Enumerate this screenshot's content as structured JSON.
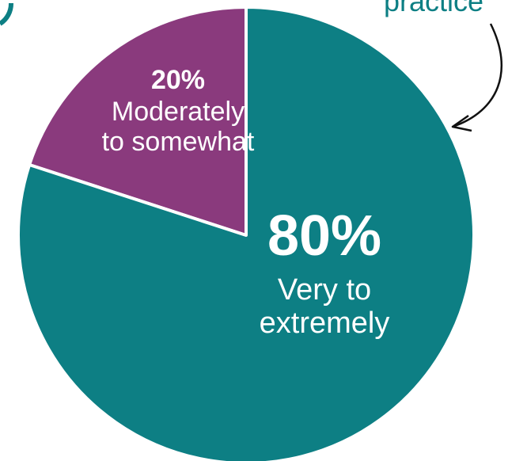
{
  "callout": {
    "text": "practice"
  },
  "chart_data": {
    "type": "pie",
    "slices": [
      {
        "value": 20,
        "percent_label": "20%",
        "label_lines": [
          "Moderately",
          "to somewhat"
        ],
        "color": "#8a3a7d"
      },
      {
        "value": 80,
        "percent_label": "80%",
        "label_lines": [
          "Very to",
          "extremely"
        ],
        "color": "#0d7f84"
      }
    ]
  }
}
